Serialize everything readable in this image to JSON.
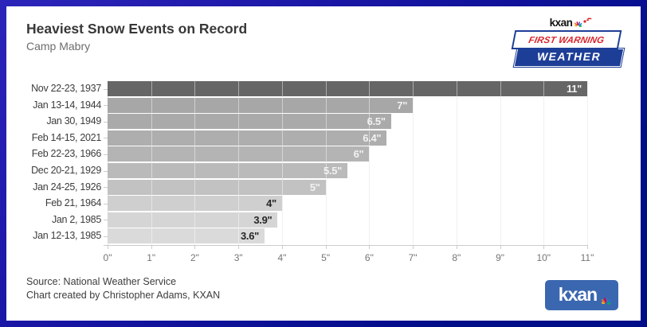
{
  "header": {
    "title": "Heaviest Snow Events on Record",
    "subtitle": "Camp Mabry"
  },
  "logo_top": {
    "station": "kxan",
    "line1": "FIRST WARNING",
    "line2": "WEATHER",
    "banner_blue": "#1d3e97",
    "banner_red": "#d8232a"
  },
  "chart_data": {
    "type": "bar",
    "orientation": "horizontal",
    "categories": [
      "Nov 22-23, 1937",
      "Jan 13-14, 1944",
      "Jan 30, 1949",
      "Feb 14-15, 2021",
      "Feb 22-23, 1966",
      "Dec 20-21, 1929",
      "Jan 24-25, 1926",
      "Feb 21, 1964",
      "Jan 2, 1985",
      "Jan 12-13, 1985"
    ],
    "values": [
      11,
      7,
      6.5,
      6.4,
      6,
      5.5,
      5,
      4,
      3.9,
      3.6
    ],
    "value_labels": [
      "11\"",
      "7\"",
      "6.5\"",
      "6.4\"",
      "6\"",
      "5.5\"",
      "5\"",
      "4\"",
      "3.9\"",
      "3.6\""
    ],
    "bar_colors": [
      "#666666",
      "#a7a7a7",
      "#aaaaaa",
      "#aeaeae",
      "#b4b4b4",
      "#bababa",
      "#c2c2c2",
      "#cfcfcf",
      "#d5d5d5",
      "#dadada"
    ],
    "value_label_colors": [
      "#f2f2f2",
      "#f2f2f2",
      "#f2f2f2",
      "#f2f2f2",
      "#f2f2f2",
      "#f2f2f2",
      "#f2f2f2",
      "#262626",
      "#262626",
      "#262626"
    ],
    "xlim": [
      0,
      11
    ],
    "x_tick_labels": [
      "0\"",
      "1\"",
      "2\"",
      "3\"",
      "4\"",
      "5\"",
      "6\"",
      "7\"",
      "8\"",
      "9\"",
      "10\"",
      "11\""
    ],
    "grid": true,
    "title": "Heaviest Snow Events on Record",
    "subtitle": "Camp Mabry",
    "xlabel": "",
    "ylabel": ""
  },
  "footer": {
    "source": "Source: National Weather Service",
    "credit": "Chart created by Christopher Adams, KXAN"
  },
  "logo_bottom": {
    "text": "kxan"
  },
  "peacock_colors": [
    "#fdb913",
    "#f37021",
    "#cc004c",
    "#6460aa",
    "#0089d0",
    "#0db14b"
  ]
}
